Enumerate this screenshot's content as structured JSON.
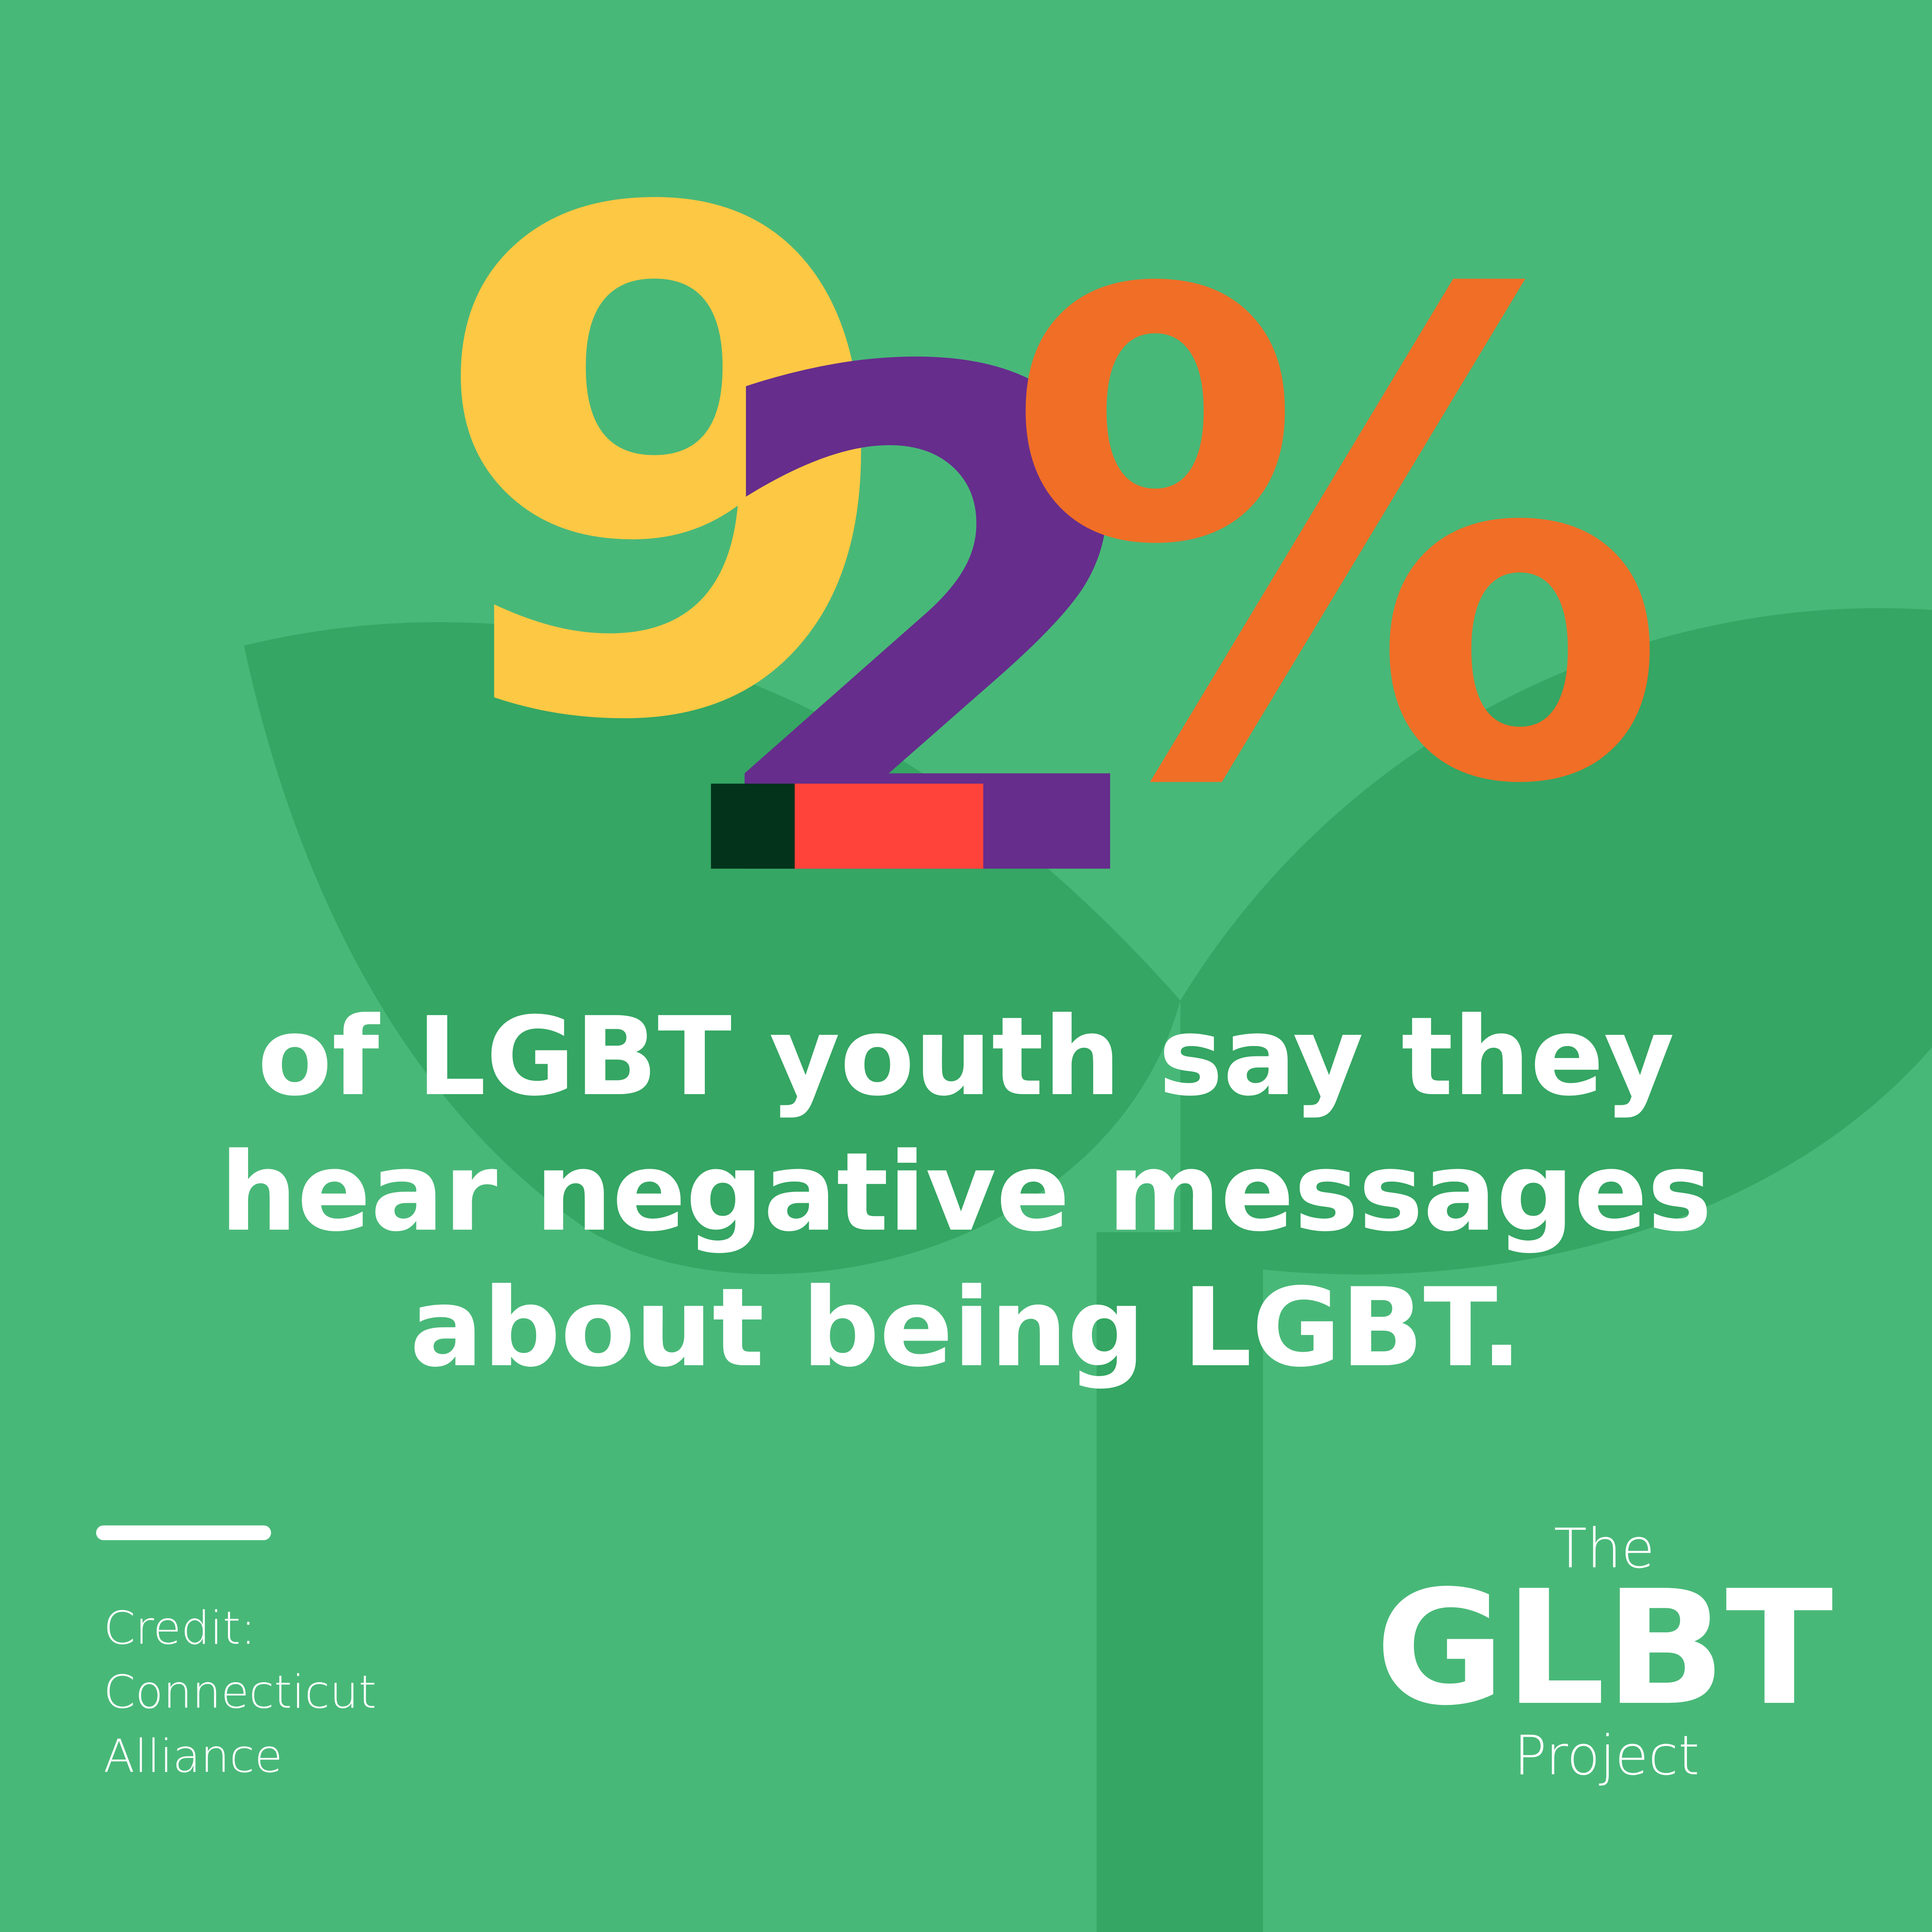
{
  "statistic": {
    "glyphs": [
      "9",
      "2",
      "%"
    ]
  },
  "message": {
    "lines": [
      "of LGBT youth say they",
      "hear negative messages",
      "about being LGBT."
    ]
  },
  "credit": {
    "lines": [
      "Credit:",
      "Connecticut",
      "Alliance"
    ]
  },
  "logo": {
    "top": "The",
    "name": "GLBT",
    "bottom": "Project"
  }
}
